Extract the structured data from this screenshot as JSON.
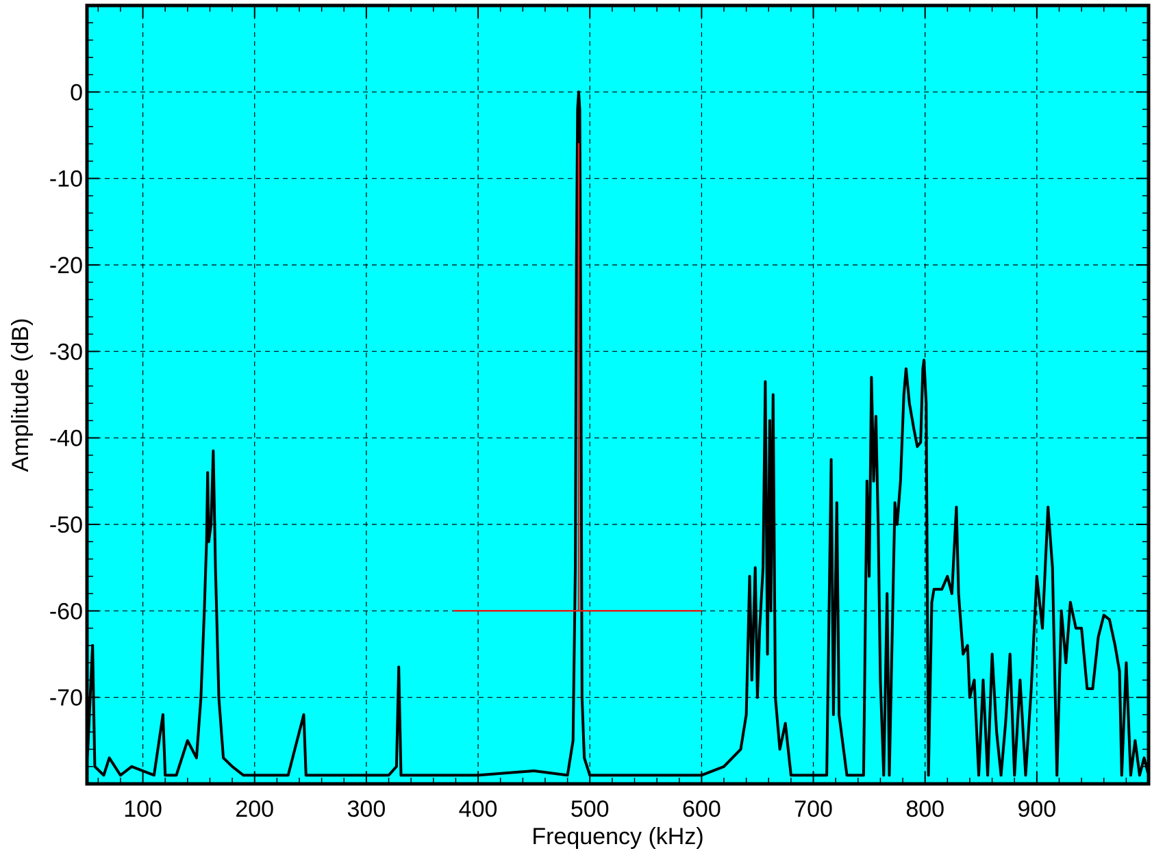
{
  "chart_data": {
    "type": "line",
    "title": "",
    "xlabel": "Frequency (kHz)",
    "ylabel": "Amplitude (dB)",
    "xlim": [
      50,
      1000
    ],
    "ylim": [
      -80,
      10
    ],
    "x_ticks": [
      100,
      200,
      300,
      400,
      500,
      600,
      700,
      800,
      900
    ],
    "x_tick_labels": [
      "100",
      "200",
      "300",
      "400",
      "500",
      "600",
      "700",
      "800",
      "900"
    ],
    "y_ticks": [
      0,
      -10,
      -20,
      -30,
      -40,
      -50,
      -60,
      -70
    ],
    "y_tick_labels": [
      "0",
      "-10",
      "-20",
      "-30",
      "-40",
      "-50",
      "-60",
      "-70"
    ],
    "grid": true,
    "background_color": "#00ffff",
    "series": [
      {
        "color": "#000000",
        "points": [
          [
            50,
            -78
          ],
          [
            55,
            -64
          ],
          [
            57,
            -78
          ],
          [
            65,
            -79
          ],
          [
            70,
            -77
          ],
          [
            80,
            -79
          ],
          [
            90,
            -78
          ],
          [
            110,
            -79
          ],
          [
            118,
            -72
          ],
          [
            120,
            -79
          ],
          [
            130,
            -79
          ],
          [
            140,
            -75
          ],
          [
            148,
            -77
          ],
          [
            152,
            -70
          ],
          [
            155,
            -60
          ],
          [
            157,
            -52
          ],
          [
            158,
            -44
          ],
          [
            159,
            -52
          ],
          [
            161,
            -50
          ],
          [
            163,
            -41.5
          ],
          [
            165,
            -55
          ],
          [
            168,
            -70
          ],
          [
            172,
            -77
          ],
          [
            180,
            -78
          ],
          [
            190,
            -79
          ],
          [
            200,
            -79
          ],
          [
            230,
            -79
          ],
          [
            244,
            -72
          ],
          [
            246,
            -79
          ],
          [
            280,
            -79
          ],
          [
            320,
            -79
          ],
          [
            327,
            -78
          ],
          [
            329,
            -66.5
          ],
          [
            331,
            -79
          ],
          [
            360,
            -79
          ],
          [
            400,
            -79
          ],
          [
            450,
            -78.5
          ],
          [
            480,
            -79
          ],
          [
            485,
            -75
          ],
          [
            487,
            -55
          ],
          [
            488,
            -20
          ],
          [
            489,
            -2
          ],
          [
            490,
            0
          ],
          [
            491,
            -2
          ],
          [
            492,
            -30
          ],
          [
            493,
            -70
          ],
          [
            495,
            -77
          ],
          [
            500,
            -79
          ],
          [
            550,
            -79
          ],
          [
            600,
            -79
          ],
          [
            620,
            -78
          ],
          [
            635,
            -76
          ],
          [
            640,
            -72
          ],
          [
            643,
            -56
          ],
          [
            645,
            -68
          ],
          [
            648,
            -55
          ],
          [
            650,
            -70
          ],
          [
            652,
            -62
          ],
          [
            655,
            -55
          ],
          [
            657,
            -33.5
          ],
          [
            659,
            -65
          ],
          [
            661,
            -38
          ],
          [
            662,
            -60
          ],
          [
            664,
            -35
          ],
          [
            666,
            -70
          ],
          [
            670,
            -76
          ],
          [
            675,
            -73
          ],
          [
            680,
            -79
          ],
          [
            700,
            -79
          ],
          [
            712,
            -79
          ],
          [
            716,
            -42.5
          ],
          [
            718,
            -72
          ],
          [
            721,
            -47.5
          ],
          [
            723,
            -72
          ],
          [
            730,
            -79
          ],
          [
            745,
            -79
          ],
          [
            748,
            -45
          ],
          [
            750,
            -56
          ],
          [
            752,
            -33
          ],
          [
            754,
            -45
          ],
          [
            756,
            -37.5
          ],
          [
            758,
            -50
          ],
          [
            760,
            -68
          ],
          [
            763,
            -79
          ],
          [
            766,
            -58
          ],
          [
            768,
            -79
          ],
          [
            771,
            -60
          ],
          [
            773,
            -47.5
          ],
          [
            775,
            -50
          ],
          [
            778,
            -45
          ],
          [
            781,
            -35
          ],
          [
            783,
            -32
          ],
          [
            786,
            -36
          ],
          [
            790,
            -39
          ],
          [
            793,
            -41
          ],
          [
            796,
            -40.5
          ],
          [
            798,
            -32
          ],
          [
            799,
            -31
          ],
          [
            801,
            -36
          ],
          [
            803,
            -79
          ],
          [
            806,
            -59
          ],
          [
            808,
            -57.5
          ],
          [
            815,
            -57.5
          ],
          [
            820,
            -56
          ],
          [
            824,
            -58
          ],
          [
            828,
            -48
          ],
          [
            830,
            -58
          ],
          [
            834,
            -65
          ],
          [
            838,
            -64
          ],
          [
            840,
            -70
          ],
          [
            844,
            -68
          ],
          [
            848,
            -79
          ],
          [
            852,
            -68
          ],
          [
            856,
            -79
          ],
          [
            860,
            -65
          ],
          [
            864,
            -74
          ],
          [
            868,
            -79
          ],
          [
            872,
            -73
          ],
          [
            876,
            -65
          ],
          [
            880,
            -79
          ],
          [
            885,
            -68
          ],
          [
            890,
            -79
          ],
          [
            895,
            -69
          ],
          [
            900,
            -56
          ],
          [
            905,
            -62
          ],
          [
            910,
            -48
          ],
          [
            914,
            -55
          ],
          [
            918,
            -79
          ],
          [
            922,
            -60
          ],
          [
            926,
            -66
          ],
          [
            930,
            -59
          ],
          [
            935,
            -62
          ],
          [
            940,
            -62
          ],
          [
            945,
            -69
          ],
          [
            950,
            -69
          ],
          [
            955,
            -63
          ],
          [
            960,
            -60.5
          ],
          [
            965,
            -61
          ],
          [
            970,
            -64
          ],
          [
            974,
            -67
          ],
          [
            976,
            -79
          ],
          [
            980,
            -66
          ],
          [
            984,
            -79
          ],
          [
            988,
            -75
          ],
          [
            992,
            -79
          ],
          [
            996,
            -77
          ],
          [
            1000,
            -79
          ]
        ]
      },
      {
        "color": "#e0201a",
        "points": [
          [
            378,
            -60
          ],
          [
            490,
            -60
          ],
          [
            490,
            -6
          ],
          [
            490,
            -60
          ],
          [
            600,
            -60
          ]
        ]
      }
    ]
  }
}
